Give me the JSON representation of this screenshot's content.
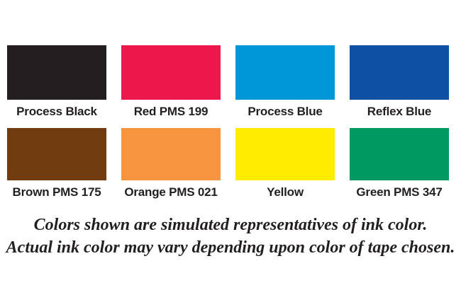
{
  "background": "#FFFFFF",
  "text_color": "#231F20",
  "swatches": [
    {
      "label": "Process Black",
      "color": "#231F20"
    },
    {
      "label": "Red PMS 199",
      "color": "#EC174B"
    },
    {
      "label": "Process Blue",
      "color": "#0097D7"
    },
    {
      "label": "Reflex Blue",
      "color": "#0E51A3"
    },
    {
      "label": "Brown PMS 175",
      "color": "#713C10"
    },
    {
      "label": "Orange PMS 021",
      "color": "#F79440"
    },
    {
      "label": "Yellow",
      "color": "#FFEC00"
    },
    {
      "label": "Green PMS 347",
      "color": "#009A60"
    }
  ],
  "caption": {
    "line1": "Colors shown are simulated representatives of ink color.",
    "line2": "Actual ink color may vary depending upon color of tape chosen."
  }
}
